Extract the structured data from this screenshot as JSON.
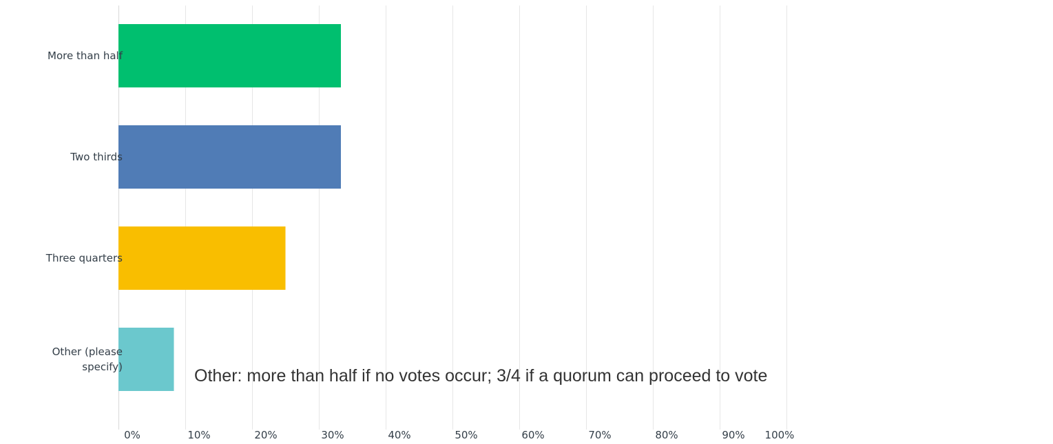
{
  "chart_data": {
    "type": "bar",
    "orientation": "horizontal",
    "categories": [
      "More than half",
      "Two thirds",
      "Three quarters",
      "Other (please specify)"
    ],
    "category_lines": [
      [
        "More than half"
      ],
      [
        "Two thirds"
      ],
      [
        "Three quarters"
      ],
      [
        "Other (please",
        "specify)"
      ]
    ],
    "values": [
      33.3,
      33.3,
      25.0,
      8.3
    ],
    "colors": [
      "#00bf6f",
      "#507cb6",
      "#f9be00",
      "#6bc8cd"
    ],
    "xlim": [
      0,
      100
    ],
    "x_ticks": [
      0,
      10,
      20,
      30,
      40,
      50,
      60,
      70,
      80,
      90,
      100
    ],
    "x_tick_labels": [
      "0%",
      "10%",
      "20%",
      "30%",
      "40%",
      "50%",
      "60%",
      "70%",
      "80%",
      "90%",
      "100%"
    ],
    "grid": true,
    "legend": "none",
    "title": "",
    "xlabel": "",
    "ylabel": "",
    "annotation": "Other: more than half if no votes occur; 3/4 if a quorum can proceed to vote"
  }
}
